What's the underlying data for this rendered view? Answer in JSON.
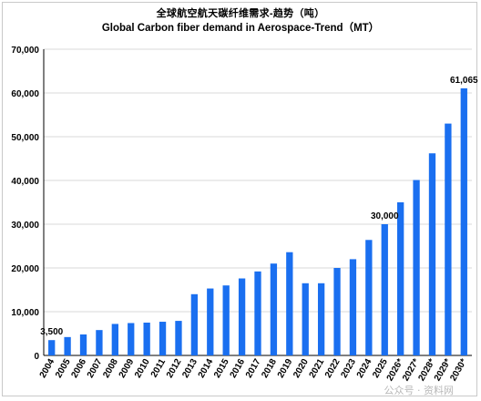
{
  "title_cn": "全球航空航天碳纤维需求-趋势（吨）",
  "title_en": "Global Carbon fiber demand in Aerospace-Trend（MT）",
  "watermark": "公众号 · 资料网",
  "colors": {
    "bar": "#1a6ff0",
    "axis": "#000000",
    "grid": "#d9d9d9"
  },
  "chart_data": {
    "type": "bar",
    "title": "Global Carbon fiber demand in Aerospace-Trend（MT）",
    "xlabel": "",
    "ylabel": "",
    "ylim": [
      0,
      70000
    ],
    "yticks": [
      0,
      10000,
      20000,
      30000,
      40000,
      50000,
      60000,
      70000
    ],
    "ytick_labels": [
      "0",
      "10,000",
      "20,000",
      "30,000",
      "40,000",
      "50,000",
      "60,000",
      "70,000"
    ],
    "grid": true,
    "categories": [
      "2004",
      "2005",
      "2006",
      "2007",
      "2008",
      "2009",
      "2010",
      "2011",
      "2012",
      "2013",
      "2014",
      "2015",
      "2016",
      "2017",
      "2018",
      "2019",
      "2020",
      "2021",
      "2022",
      "2023",
      "2024",
      "2025",
      "2026*",
      "2027*",
      "2028*",
      "2029*",
      "2030*"
    ],
    "values": [
      3500,
      4200,
      4800,
      5800,
      7200,
      7400,
      7500,
      7700,
      7900,
      14000,
      15300,
      16000,
      17600,
      19200,
      21000,
      23600,
      16500,
      16500,
      20000,
      22000,
      26400,
      30000,
      35000,
      40100,
      46200,
      53000,
      61065
    ],
    "data_labels": [
      {
        "index": 0,
        "text": "3,500"
      },
      {
        "index": 21,
        "text": "30,000"
      },
      {
        "index": 26,
        "text": "61,065"
      }
    ]
  }
}
